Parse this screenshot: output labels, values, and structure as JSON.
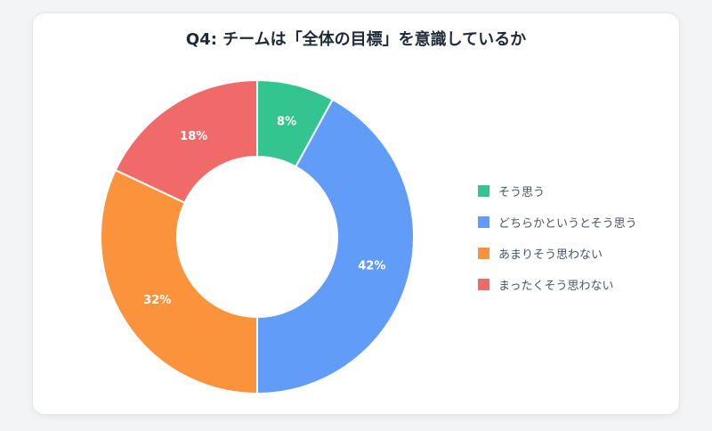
{
  "chart_data": {
    "type": "pie",
    "title": "Q4: チームは「全体の目標」を意識しているか",
    "categories": [
      "そう思う",
      "どちらかというとそう思う",
      "あまりそう思わない",
      "まったくそう思わない"
    ],
    "values": [
      8,
      42,
      32,
      18
    ],
    "value_labels": [
      "8%",
      "42%",
      "32%",
      "18%"
    ],
    "colors": [
      "#34c48f",
      "#619cf8",
      "#fb923c",
      "#f16a6a"
    ],
    "donut": true,
    "legend": "right"
  }
}
